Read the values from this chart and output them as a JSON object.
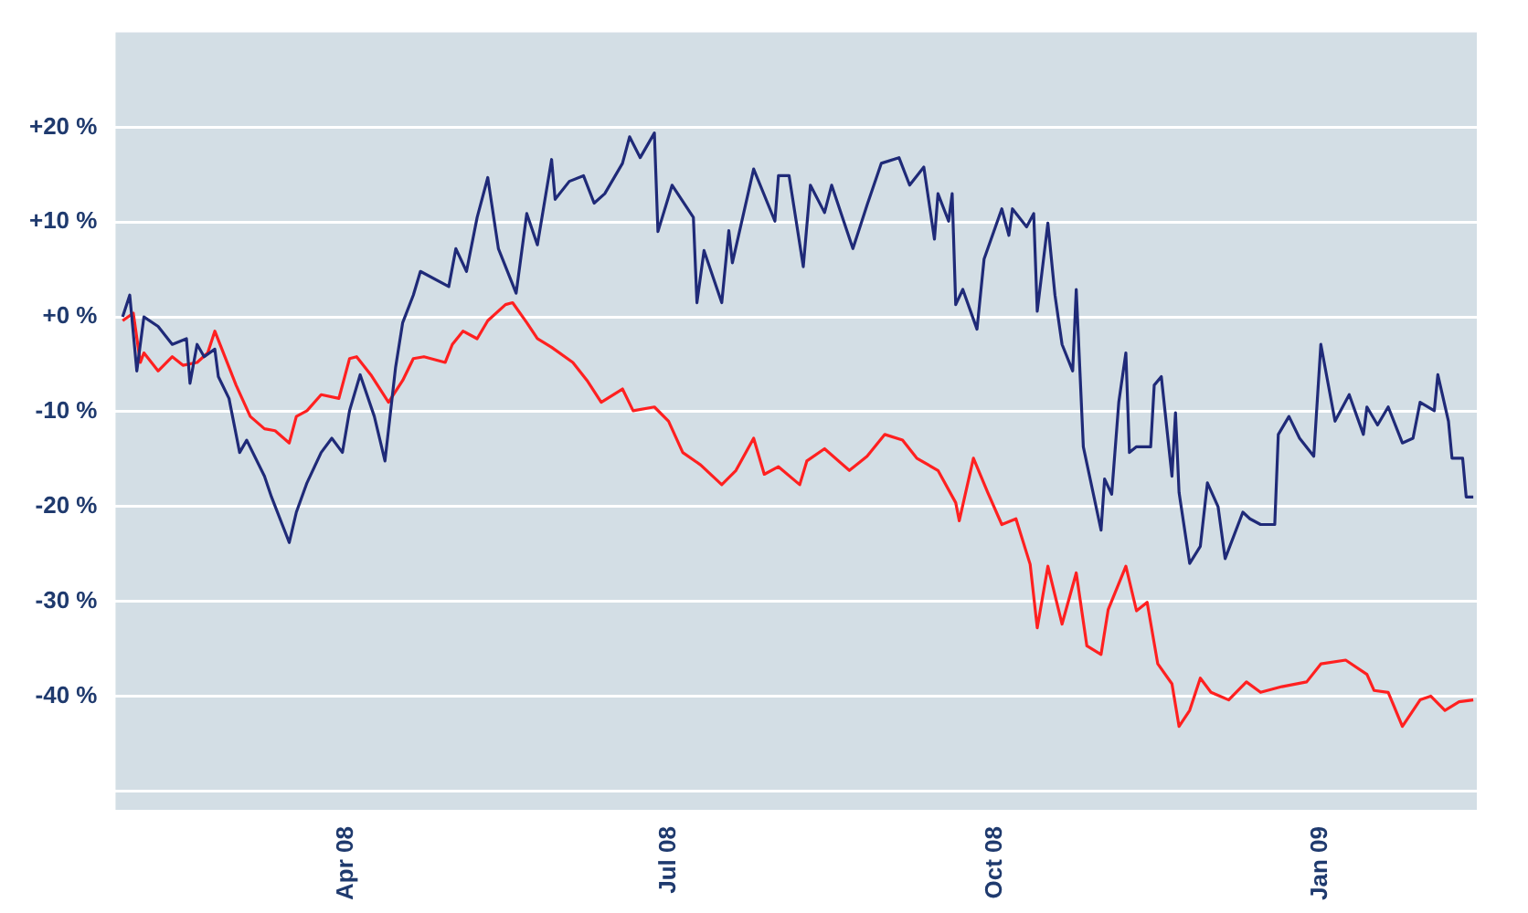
{
  "chart_data": {
    "type": "line",
    "xlim": [
      "2008-01-27",
      "2009-02-14"
    ],
    "xticks": [
      {
        "value": "2008-04-01",
        "label": "Apr 08"
      },
      {
        "value": "2008-07-01",
        "label": "Jul 08"
      },
      {
        "value": "2008-10-01",
        "label": "Oct 08"
      },
      {
        "value": "2009-01-01",
        "label": "Jan 09"
      }
    ],
    "ylim": [
      -52,
      30
    ],
    "yticks": [
      {
        "value": -50,
        "label": null
      },
      {
        "value": -40,
        "label": "-40 %"
      },
      {
        "value": -30,
        "label": "-30 %"
      },
      {
        "value": -20,
        "label": "-20 %"
      },
      {
        "value": -10,
        "label": "-10 %"
      },
      {
        "value": 0,
        "label": "+0 %"
      },
      {
        "value": 10,
        "label": "+10 %"
      },
      {
        "value": 20,
        "label": "+20 %"
      }
    ],
    "grid": "y",
    "legend": false,
    "marker": "none",
    "line_style": "solid",
    "series": [
      {
        "color": "#1f2a78",
        "x": [
          "2008-01-29",
          "2008-01-31",
          "2008-02-02",
          "2008-02-04",
          "2008-02-08",
          "2008-02-12",
          "2008-02-16",
          "2008-02-17",
          "2008-02-19",
          "2008-02-21",
          "2008-02-24",
          "2008-02-25",
          "2008-02-28",
          "2008-03-02",
          "2008-03-04",
          "2008-03-09",
          "2008-03-11",
          "2008-03-16",
          "2008-03-18",
          "2008-03-21",
          "2008-03-25",
          "2008-03-28",
          "2008-03-31",
          "2008-04-02",
          "2008-04-05",
          "2008-04-09",
          "2008-04-12",
          "2008-04-15",
          "2008-04-17",
          "2008-04-20",
          "2008-04-22",
          "2008-04-30",
          "2008-05-02",
          "2008-05-05",
          "2008-05-08",
          "2008-05-11",
          "2008-05-14",
          "2008-05-19",
          "2008-05-22",
          "2008-05-25",
          "2008-05-29",
          "2008-05-30",
          "2008-06-03",
          "2008-06-07",
          "2008-06-10",
          "2008-06-13",
          "2008-06-18",
          "2008-06-20",
          "2008-06-23",
          "2008-06-27",
          "2008-06-28",
          "2008-07-02",
          "2008-07-08",
          "2008-07-09",
          "2008-07-11",
          "2008-07-16",
          "2008-07-18",
          "2008-07-19",
          "2008-07-25",
          "2008-07-31",
          "2008-08-01",
          "2008-08-04",
          "2008-08-08",
          "2008-08-10",
          "2008-08-14",
          "2008-08-16",
          "2008-08-22",
          "2008-08-26",
          "2008-08-30",
          "2008-09-04",
          "2008-09-07",
          "2008-09-11",
          "2008-09-14",
          "2008-09-15",
          "2008-09-18",
          "2008-09-19",
          "2008-09-20",
          "2008-09-22",
          "2008-09-26",
          "2008-09-28",
          "2008-10-03",
          "2008-10-05",
          "2008-10-06",
          "2008-10-10",
          "2008-10-12",
          "2008-10-13",
          "2008-10-16",
          "2008-10-18",
          "2008-10-20",
          "2008-10-23",
          "2008-10-24",
          "2008-10-26",
          "2008-10-31",
          "2008-11-01",
          "2008-11-03",
          "2008-11-05",
          "2008-11-07",
          "2008-11-08",
          "2008-11-10",
          "2008-11-14",
          "2008-11-15",
          "2008-11-17",
          "2008-11-20",
          "2008-11-21",
          "2008-11-22",
          "2008-11-25",
          "2008-11-28",
          "2008-11-30",
          "2008-12-03",
          "2008-12-05",
          "2008-12-10",
          "2008-12-12",
          "2008-12-15",
          "2008-12-19",
          "2008-12-20",
          "2008-12-23",
          "2008-12-26",
          "2008-12-30",
          "2009-01-01",
          "2009-01-05",
          "2009-01-09",
          "2009-01-13",
          "2009-01-14",
          "2009-01-17",
          "2009-01-20",
          "2009-01-24",
          "2009-01-27",
          "2009-01-29",
          "2009-02-02",
          "2009-02-03",
          "2009-02-06",
          "2009-02-07",
          "2009-02-10",
          "2009-02-11",
          "2009-02-13"
        ],
        "values": [
          0.0,
          2.3,
          -5.7,
          0.0,
          -1.0,
          -2.9,
          -2.3,
          -7.0,
          -2.9,
          -4.2,
          -3.4,
          -6.3,
          -8.6,
          -14.3,
          -13.0,
          -16.8,
          -19.0,
          -23.8,
          -20.6,
          -17.5,
          -14.3,
          -12.8,
          -14.3,
          -9.9,
          -6.1,
          -10.5,
          -15.2,
          -5.3,
          -0.6,
          2.3,
          4.8,
          3.2,
          7.2,
          4.8,
          10.5,
          14.7,
          7.2,
          2.5,
          10.9,
          7.6,
          16.6,
          12.4,
          14.3,
          14.9,
          12.0,
          13.0,
          16.2,
          19.0,
          16.8,
          19.4,
          9.0,
          13.9,
          10.5,
          1.5,
          7.0,
          1.5,
          9.1,
          5.7,
          15.6,
          10.1,
          14.9,
          14.9,
          5.3,
          13.9,
          11.0,
          13.9,
          7.2,
          11.8,
          16.2,
          16.8,
          13.9,
          15.8,
          8.2,
          13.0,
          10.1,
          13.0,
          1.3,
          2.9,
          -1.3,
          6.1,
          11.4,
          8.6,
          11.4,
          9.5,
          10.9,
          0.6,
          9.9,
          2.3,
          -2.9,
          -5.7,
          2.9,
          -13.7,
          -22.5,
          -17.1,
          -18.7,
          -9.0,
          -3.8,
          -14.3,
          -13.7,
          -13.7,
          -7.2,
          -6.3,
          -16.8,
          -10.1,
          -18.5,
          -26.0,
          -24.2,
          -17.5,
          -20.0,
          -25.5,
          -20.6,
          -21.3,
          -21.9,
          -21.9,
          -12.4,
          -10.5,
          -12.8,
          -14.7,
          -2.9,
          -11.0,
          -8.2,
          -12.4,
          -9.5,
          -11.4,
          -9.5,
          -13.3,
          -12.8,
          -9.0,
          -9.9,
          -6.1,
          -11.0,
          -14.9,
          -14.9,
          -19.0,
          -19.0
        ]
      },
      {
        "color": "#ff2020",
        "x": [
          "2008-01-29",
          "2008-02-01",
          "2008-02-03",
          "2008-02-04",
          "2008-02-08",
          "2008-02-12",
          "2008-02-15",
          "2008-02-19",
          "2008-02-22",
          "2008-02-24",
          "2008-02-28",
          "2008-03-01",
          "2008-03-05",
          "2008-03-09",
          "2008-03-12",
          "2008-03-16",
          "2008-03-18",
          "2008-03-21",
          "2008-03-25",
          "2008-03-30",
          "2008-04-02",
          "2008-04-04",
          "2008-04-08",
          "2008-04-13",
          "2008-04-17",
          "2008-04-20",
          "2008-04-23",
          "2008-04-29",
          "2008-05-01",
          "2008-05-04",
          "2008-05-08",
          "2008-05-11",
          "2008-05-16",
          "2008-05-18",
          "2008-05-22",
          "2008-05-25",
          "2008-05-29",
          "2008-06-04",
          "2008-06-08",
          "2008-06-12",
          "2008-06-18",
          "2008-06-21",
          "2008-06-27",
          "2008-07-01",
          "2008-07-05",
          "2008-07-10",
          "2008-07-16",
          "2008-07-20",
          "2008-07-25",
          "2008-07-28",
          "2008-08-01",
          "2008-08-07",
          "2008-08-09",
          "2008-08-14",
          "2008-08-21",
          "2008-08-26",
          "2008-08-31",
          "2008-09-05",
          "2008-09-09",
          "2008-09-15",
          "2008-09-20",
          "2008-09-21",
          "2008-09-25",
          "2008-09-29",
          "2008-10-03",
          "2008-10-07",
          "2008-10-11",
          "2008-10-13",
          "2008-10-16",
          "2008-10-20",
          "2008-10-24",
          "2008-10-27",
          "2008-10-31",
          "2008-11-02",
          "2008-11-07",
          "2008-11-10",
          "2008-11-13",
          "2008-11-16",
          "2008-11-20",
          "2008-11-22",
          "2008-11-25",
          "2008-11-28",
          "2008-12-01",
          "2008-12-06",
          "2008-12-11",
          "2008-12-15",
          "2008-12-21",
          "2008-12-28",
          "2009-01-01",
          "2009-01-08",
          "2009-01-14",
          "2009-01-16",
          "2009-01-20",
          "2009-01-24",
          "2009-01-29",
          "2009-02-01",
          "2009-02-05",
          "2009-02-09",
          "2009-02-13"
        ],
        "values": [
          -0.4,
          0.4,
          -4.8,
          -3.8,
          -5.7,
          -4.2,
          -5.1,
          -4.8,
          -3.8,
          -1.5,
          -5.3,
          -7.2,
          -10.5,
          -11.8,
          -12.0,
          -13.3,
          -10.5,
          -9.9,
          -8.2,
          -8.6,
          -4.4,
          -4.2,
          -6.1,
          -9.0,
          -6.7,
          -4.4,
          -4.2,
          -4.8,
          -2.9,
          -1.5,
          -2.3,
          -0.4,
          1.3,
          1.5,
          -0.6,
          -2.3,
          -3.2,
          -4.8,
          -6.7,
          -9.0,
          -7.6,
          -9.9,
          -9.5,
          -11.0,
          -14.3,
          -15.6,
          -17.7,
          -16.2,
          -12.8,
          -16.6,
          -15.8,
          -17.7,
          -15.2,
          -13.9,
          -16.2,
          -14.7,
          -12.4,
          -13.0,
          -14.9,
          -16.2,
          -19.6,
          -21.5,
          -14.9,
          -18.5,
          -21.9,
          -21.3,
          -26.1,
          -32.8,
          -26.3,
          -32.4,
          -27.0,
          -34.7,
          -35.6,
          -30.9,
          -26.3,
          -31.0,
          -30.1,
          -36.6,
          -38.7,
          -43.2,
          -41.5,
          -38.1,
          -39.6,
          -40.4,
          -38.5,
          -39.6,
          -39.0,
          -38.5,
          -36.6,
          -36.2,
          -37.7,
          -39.4,
          -39.6,
          -43.2,
          -40.4,
          -40.0,
          -41.5,
          -40.6,
          -40.4
        ]
      }
    ]
  }
}
